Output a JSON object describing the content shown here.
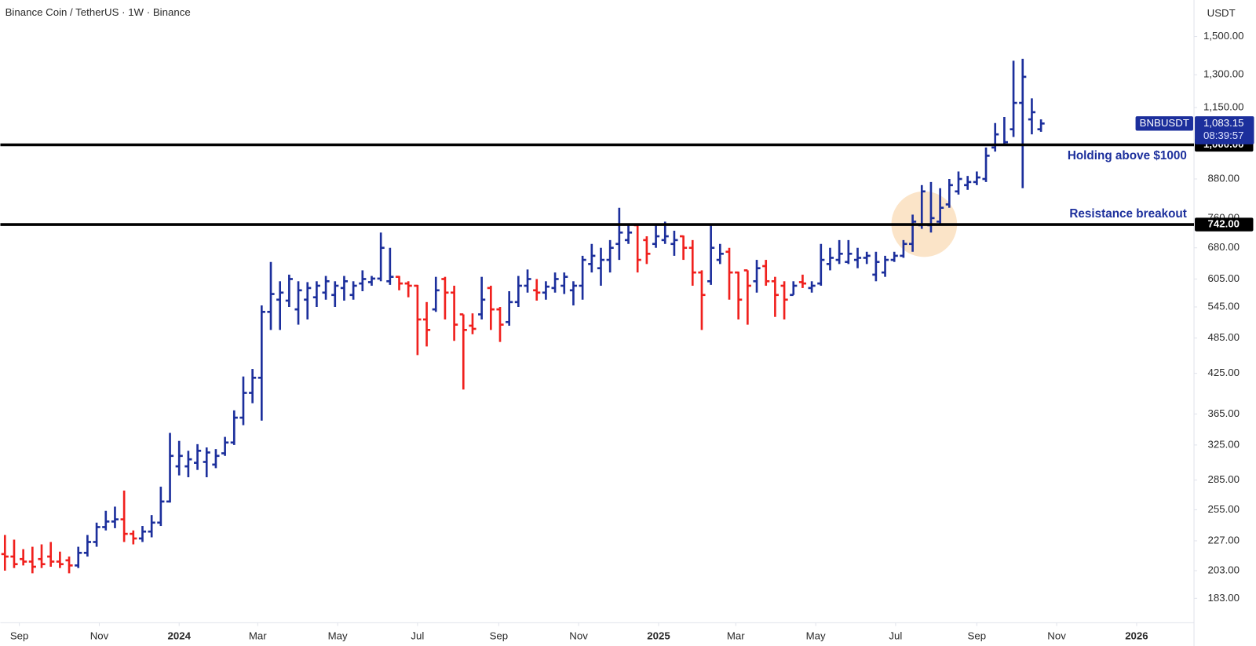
{
  "chart_data": {
    "type": "ohlc",
    "title": "Binance Coin / TetherUS · 1W · Binance",
    "currency": "USDT",
    "symbol": "BNBUSDT",
    "last_price": {
      "value": 1083.15,
      "label": "1,083.15"
    },
    "countdown": "08:39:57",
    "up_color": "#1c2f9c",
    "down_color": "#f0201d",
    "log_scale": true,
    "ylim": [
      167,
      1720
    ],
    "yticks": [
      {
        "value": 183,
        "label": "183.00"
      },
      {
        "value": 203,
        "label": "203.00"
      },
      {
        "value": 227,
        "label": "227.00"
      },
      {
        "value": 255,
        "label": "255.00"
      },
      {
        "value": 285,
        "label": "285.00"
      },
      {
        "value": 325,
        "label": "325.00"
      },
      {
        "value": 365,
        "label": "365.00"
      },
      {
        "value": 425,
        "label": "425.00"
      },
      {
        "value": 485,
        "label": "485.00"
      },
      {
        "value": 545,
        "label": "545.00"
      },
      {
        "value": 605,
        "label": "605.00"
      },
      {
        "value": 680,
        "label": "680.00"
      },
      {
        "value": 760,
        "label": "760.00"
      },
      {
        "value": 880,
        "label": "880.00"
      },
      {
        "value": 1150,
        "label": "1,150.00"
      },
      {
        "value": 1300,
        "label": "1,300.00"
      },
      {
        "value": 1500,
        "label": "1,500.00"
      }
    ],
    "xlim": [
      -0.5,
      129.6
    ],
    "xticks": [
      {
        "value": 1.57,
        "label": "Sep"
      },
      {
        "value": 10.29,
        "label": "Nov"
      },
      {
        "value": 19.0,
        "label": "2024"
      },
      {
        "value": 27.57,
        "label": "Mar"
      },
      {
        "value": 36.29,
        "label": "May"
      },
      {
        "value": 45.0,
        "label": "Jul"
      },
      {
        "value": 53.86,
        "label": "Sep"
      },
      {
        "value": 62.57,
        "label": "Nov"
      },
      {
        "value": 71.29,
        "label": "2025"
      },
      {
        "value": 79.71,
        "label": "Mar"
      },
      {
        "value": 88.43,
        "label": "May"
      },
      {
        "value": 97.14,
        "label": "Jul"
      },
      {
        "value": 106.0,
        "label": "Sep"
      },
      {
        "value": 114.71,
        "label": "Nov"
      },
      {
        "value": 123.43,
        "label": "2026"
      }
    ],
    "levels": [
      {
        "value": 1000,
        "label": "1,000.00",
        "annotation": "Holding above $1000"
      },
      {
        "value": 742,
        "label": "742.00",
        "annotation": "Resistance breakout"
      }
    ],
    "bars": [
      [
        216,
        232,
        203,
        214
      ],
      [
        214,
        228,
        205,
        208
      ],
      [
        212,
        220,
        207,
        210
      ],
      [
        210,
        222,
        201,
        206
      ],
      [
        212,
        224,
        205,
        208
      ],
      [
        214,
        226,
        206,
        210
      ],
      [
        210,
        218,
        205,
        208
      ],
      [
        211,
        214,
        201,
        207
      ],
      [
        207,
        222,
        205,
        217
      ],
      [
        217,
        232,
        214,
        226
      ],
      [
        226,
        243,
        222,
        239
      ],
      [
        239,
        254,
        236,
        244
      ],
      [
        244,
        258,
        238,
        246
      ],
      [
        246,
        274,
        226,
        233
      ],
      [
        233,
        236,
        224,
        229
      ],
      [
        229,
        240,
        226,
        235
      ],
      [
        235,
        250,
        230,
        243
      ],
      [
        243,
        278,
        240,
        263
      ],
      [
        263,
        340,
        262,
        312
      ],
      [
        300,
        330,
        290,
        312
      ],
      [
        300,
        318,
        288,
        308
      ],
      [
        304,
        326,
        296,
        318
      ],
      [
        305,
        322,
        288,
        316
      ],
      [
        302,
        320,
        298,
        312
      ],
      [
        315,
        335,
        312,
        328
      ],
      [
        328,
        370,
        325,
        360
      ],
      [
        360,
        420,
        350,
        395
      ],
      [
        395,
        432,
        380,
        418
      ],
      [
        418,
        548,
        356,
        535
      ],
      [
        535,
        645,
        500,
        572
      ],
      [
        560,
        600,
        500,
        575
      ],
      [
        558,
        615,
        545,
        605
      ],
      [
        540,
        600,
        510,
        580
      ],
      [
        560,
        598,
        520,
        585
      ],
      [
        565,
        600,
        545,
        590
      ],
      [
        575,
        612,
        560,
        600
      ],
      [
        570,
        600,
        545,
        590
      ],
      [
        585,
        612,
        558,
        600
      ],
      [
        570,
        600,
        560,
        590
      ],
      [
        595,
        625,
        578,
        605
      ],
      [
        598,
        612,
        590,
        606
      ],
      [
        606,
        720,
        600,
        680
      ],
      [
        600,
        680,
        592,
        610
      ],
      [
        610,
        612,
        580,
        595
      ],
      [
        595,
        600,
        565,
        590
      ],
      [
        590,
        592,
        455,
        520
      ],
      [
        520,
        555,
        470,
        500
      ],
      [
        540,
        610,
        535,
        580
      ],
      [
        605,
        610,
        520,
        575
      ],
      [
        575,
        590,
        480,
        510
      ],
      [
        530,
        530,
        400,
        500
      ],
      [
        508,
        532,
        492,
        502
      ],
      [
        530,
        610,
        520,
        560
      ],
      [
        585,
        590,
        500,
        540
      ],
      [
        540,
        545,
        478,
        510
      ],
      [
        515,
        578,
        508,
        555
      ],
      [
        555,
        612,
        545,
        590
      ],
      [
        590,
        627,
        575,
        605
      ],
      [
        580,
        605,
        558,
        575
      ],
      [
        575,
        600,
        560,
        588
      ],
      [
        585,
        620,
        575,
        605
      ],
      [
        590,
        620,
        572,
        610
      ],
      [
        580,
        600,
        548,
        590
      ],
      [
        590,
        660,
        560,
        650
      ],
      [
        640,
        690,
        620,
        660
      ],
      [
        630,
        680,
        590,
        650
      ],
      [
        650,
        700,
        620,
        680
      ],
      [
        690,
        790,
        650,
        720
      ],
      [
        700,
        740,
        690,
        720
      ],
      [
        740,
        742,
        620,
        650
      ],
      [
        700,
        710,
        640,
        665
      ],
      [
        690,
        740,
        680,
        710
      ],
      [
        700,
        750,
        690,
        710
      ],
      [
        690,
        725,
        660,
        700
      ],
      [
        710,
        712,
        650,
        680
      ],
      [
        680,
        700,
        590,
        620
      ],
      [
        620,
        625,
        500,
        570
      ],
      [
        600,
        745,
        592,
        680
      ],
      [
        650,
        690,
        640,
        665
      ],
      [
        670,
        680,
        560,
        620
      ],
      [
        620,
        622,
        520,
        560
      ],
      [
        625,
        625,
        510,
        590
      ],
      [
        600,
        650,
        575,
        630
      ],
      [
        635,
        650,
        590,
        600
      ],
      [
        600,
        610,
        525,
        570
      ],
      [
        590,
        600,
        520,
        560
      ],
      [
        570,
        600,
        570,
        590
      ],
      [
        598,
        615,
        585,
        595
      ],
      [
        585,
        600,
        575,
        590
      ],
      [
        595,
        690,
        590,
        650
      ],
      [
        640,
        680,
        625,
        655
      ],
      [
        650,
        700,
        640,
        665
      ],
      [
        645,
        700,
        640,
        665
      ],
      [
        650,
        680,
        630,
        655
      ],
      [
        655,
        670,
        640,
        660
      ],
      [
        615,
        670,
        600,
        645
      ],
      [
        620,
        660,
        610,
        650
      ],
      [
        650,
        670,
        645,
        660
      ],
      [
        660,
        700,
        655,
        690
      ],
      [
        690,
        770,
        670,
        750
      ],
      [
        740,
        860,
        730,
        840
      ],
      [
        740,
        870,
        720,
        760
      ],
      [
        750,
        850,
        740,
        790
      ],
      [
        800,
        880,
        790,
        860
      ],
      [
        840,
        905,
        830,
        880
      ],
      [
        860,
        890,
        845,
        870
      ],
      [
        870,
        905,
        860,
        885
      ],
      [
        880,
        990,
        870,
        960
      ],
      [
        990,
        1085,
        975,
        1040
      ],
      [
        1000,
        1110,
        1000,
        1010
      ],
      [
        1060,
        1370,
        1030,
        1170
      ],
      [
        1170,
        1380,
        850,
        1290
      ],
      [
        1100,
        1190,
        1040,
        1130
      ],
      [
        1060,
        1100,
        1050,
        1083.15
      ]
    ]
  }
}
